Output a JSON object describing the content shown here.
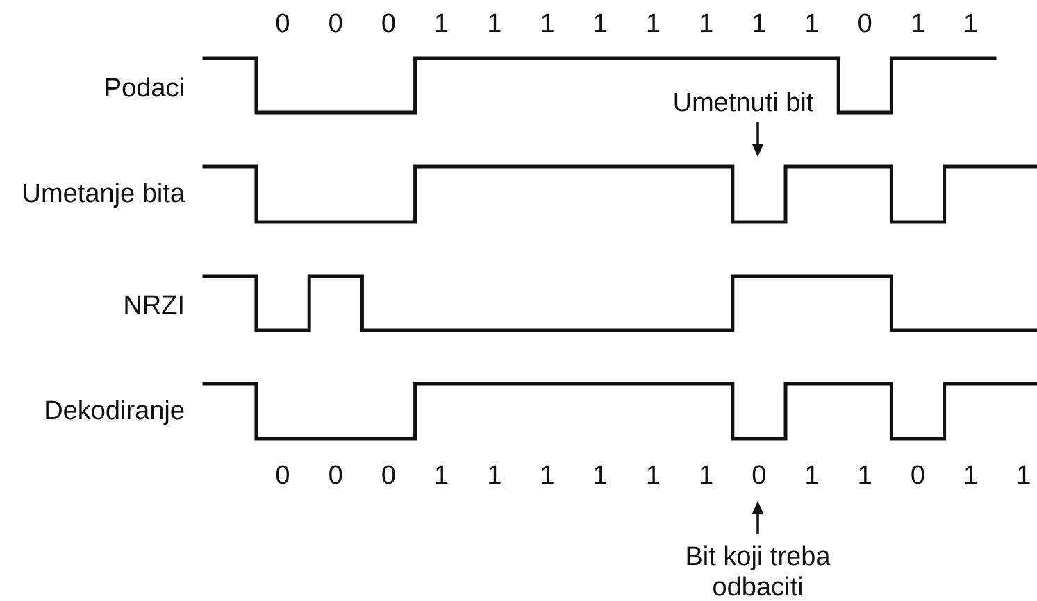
{
  "top_bits": [
    "0",
    "0",
    "0",
    "1",
    "1",
    "1",
    "1",
    "1",
    "1",
    "1",
    "1",
    "0",
    "1",
    "1"
  ],
  "bottom_bits": [
    "0",
    "0",
    "0",
    "1",
    "1",
    "1",
    "1",
    "1",
    "1",
    "0",
    "1",
    "1",
    "0",
    "1",
    "1"
  ],
  "signals": [
    {
      "label": "Podaci",
      "levels": [
        0,
        0,
        0,
        1,
        1,
        1,
        1,
        1,
        1,
        1,
        1,
        0,
        1,
        1
      ]
    },
    {
      "label": "Umetanje bita",
      "levels": [
        0,
        0,
        0,
        1,
        1,
        1,
        1,
        1,
        1,
        0,
        1,
        1,
        0,
        1,
        1
      ]
    },
    {
      "label": "NRZI",
      "levels": [
        0,
        1,
        0,
        0,
        0,
        0,
        0,
        0,
        0,
        1,
        1,
        1,
        0,
        0,
        0
      ]
    },
    {
      "label": "Dekodiranje",
      "levels": [
        0,
        0,
        0,
        1,
        1,
        1,
        1,
        1,
        1,
        0,
        1,
        1,
        0,
        1,
        1
      ]
    }
  ],
  "annotations": {
    "inserted_bit": "Umetnuti bit",
    "discard_bit_line1": "Bit koji treba",
    "discard_bit_line2": "odbaciti"
  }
}
